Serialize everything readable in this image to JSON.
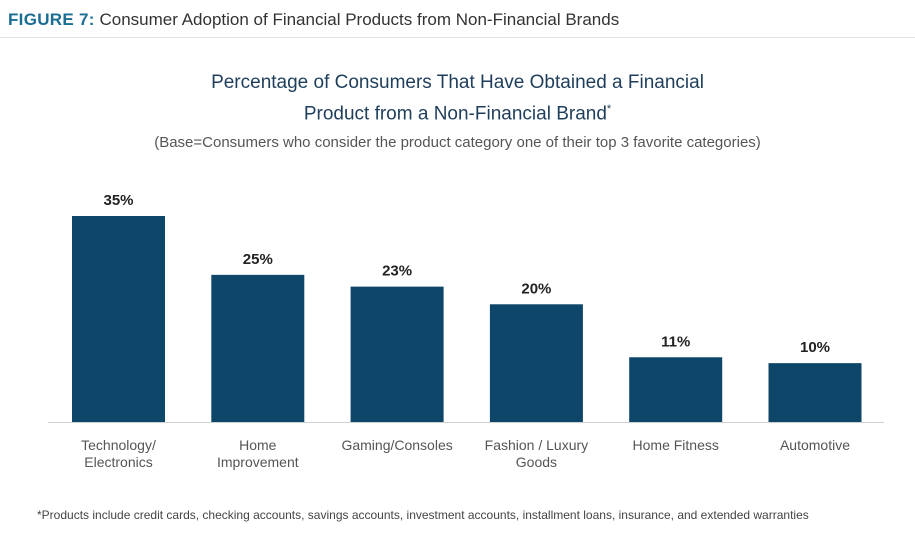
{
  "figure": {
    "label": "FIGURE 7:",
    "title": "Consumer Adoption of Financial Products from Non-Financial Brands"
  },
  "footnote": "*Products include credit cards, checking accounts, savings accounts, investment accounts, installment loans, insurance, and extended warranties",
  "colors": {
    "bar": "#0d4668",
    "figure_label": "#1b6d93",
    "title": "#1e3e5c"
  },
  "chart_data": {
    "type": "bar",
    "title_lines": [
      "Percentage of Consumers That Have Obtained a Financial",
      "Product from a Non-Financial Brand"
    ],
    "title_suffix": "*",
    "subtitle": "(Base=Consumers who consider the product category one of their top 3 favorite categories)",
    "categories": [
      [
        "Technology/",
        "Electronics"
      ],
      [
        "Home",
        "Improvement"
      ],
      [
        "Gaming/Consoles"
      ],
      [
        "Fashion / Luxury",
        "Goods"
      ],
      [
        "Home Fitness"
      ],
      [
        "Automotive"
      ]
    ],
    "values": [
      35,
      25,
      23,
      20,
      11,
      10
    ],
    "value_labels": [
      "35%",
      "25%",
      "23%",
      "20%",
      "11%",
      "10%"
    ],
    "xlabel": "",
    "ylabel": "",
    "grid": false
  }
}
